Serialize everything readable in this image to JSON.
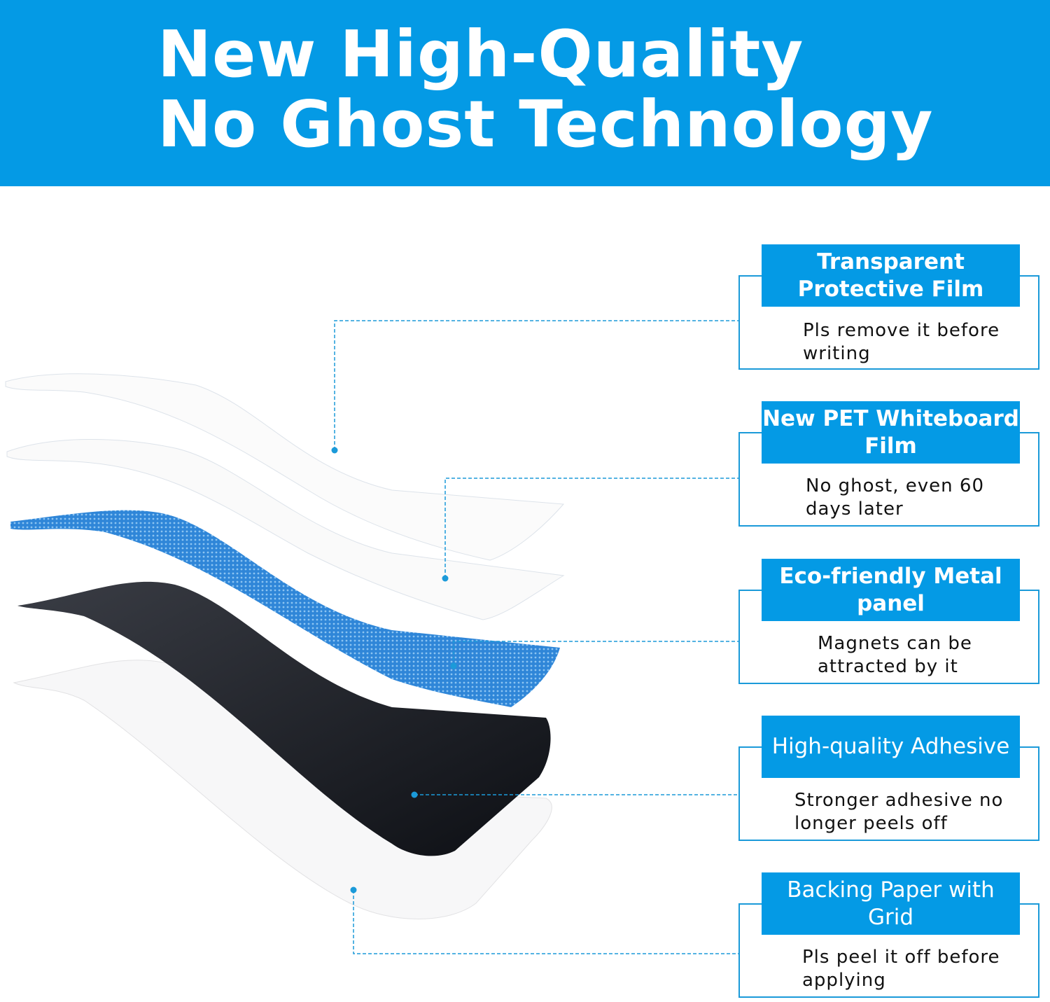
{
  "banner": {
    "title_line1": "New High-Quality",
    "title_line2": "No Ghost Technology",
    "color": "#049ae5"
  },
  "layers": [
    {
      "name": "Transparent Protective Film",
      "desc": "Pls remove it before writing"
    },
    {
      "name": "New PET Whiteboard Film",
      "desc": "No ghost, even 60 days later"
    },
    {
      "name": "Eco-friendly Metal panel",
      "desc": "Magnets can be attracted by it"
    },
    {
      "name": "High-quality Adhesive",
      "desc": "Stronger adhesive no longer peels off"
    },
    {
      "name": "Backing Paper with Grid",
      "desc": "Pls peel it off before applying"
    }
  ]
}
